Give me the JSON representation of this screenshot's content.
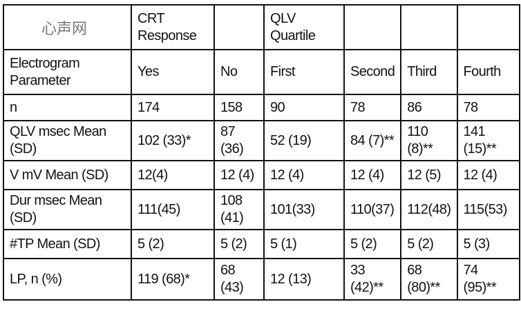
{
  "header_row": [
    "",
    "CRT Response",
    "",
    "QLV Quartile",
    "",
    "",
    ""
  ],
  "subheader_row": [
    "Electrogram Parameter",
    "Yes",
    "No",
    "First",
    "Second",
    "Third",
    "Fourth"
  ],
  "rows": [
    {
      "label": "n",
      "cells": [
        "174",
        "158",
        "90",
        "78",
        "86",
        "78"
      ]
    },
    {
      "label": "QLV msec Mean (SD)",
      "cells": [
        "102 (33)*",
        "87 (36)",
        "52 (19)",
        "84 (7)**",
        "110 (8)**",
        "141 (15)**"
      ]
    },
    {
      "label": "V mV Mean (SD)",
      "cells": [
        "12(4)",
        "12 (4)",
        "12 (4)",
        "12 (4)",
        "12 (5)",
        "12 (4)"
      ]
    },
    {
      "label": "Dur msec Mean (SD)",
      "cells": [
        "111(45)",
        "108 (41)",
        "101(33)",
        "110(37)",
        "112(48)",
        "115(53)"
      ]
    },
    {
      "label": "#TP Mean (SD)",
      "cells": [
        "5 (2)",
        "5 (2)",
        "5 (1)",
        "5 (2)",
        "5 (2)",
        "5 (3)"
      ]
    },
    {
      "label": "LP, n (%)",
      "cells": [
        "119 (68)*",
        "68 (43)",
        "12 (13)",
        "33 (42)**",
        "68 (80)**",
        "74 (95)**"
      ]
    }
  ],
  "watermark": "心声网"
}
